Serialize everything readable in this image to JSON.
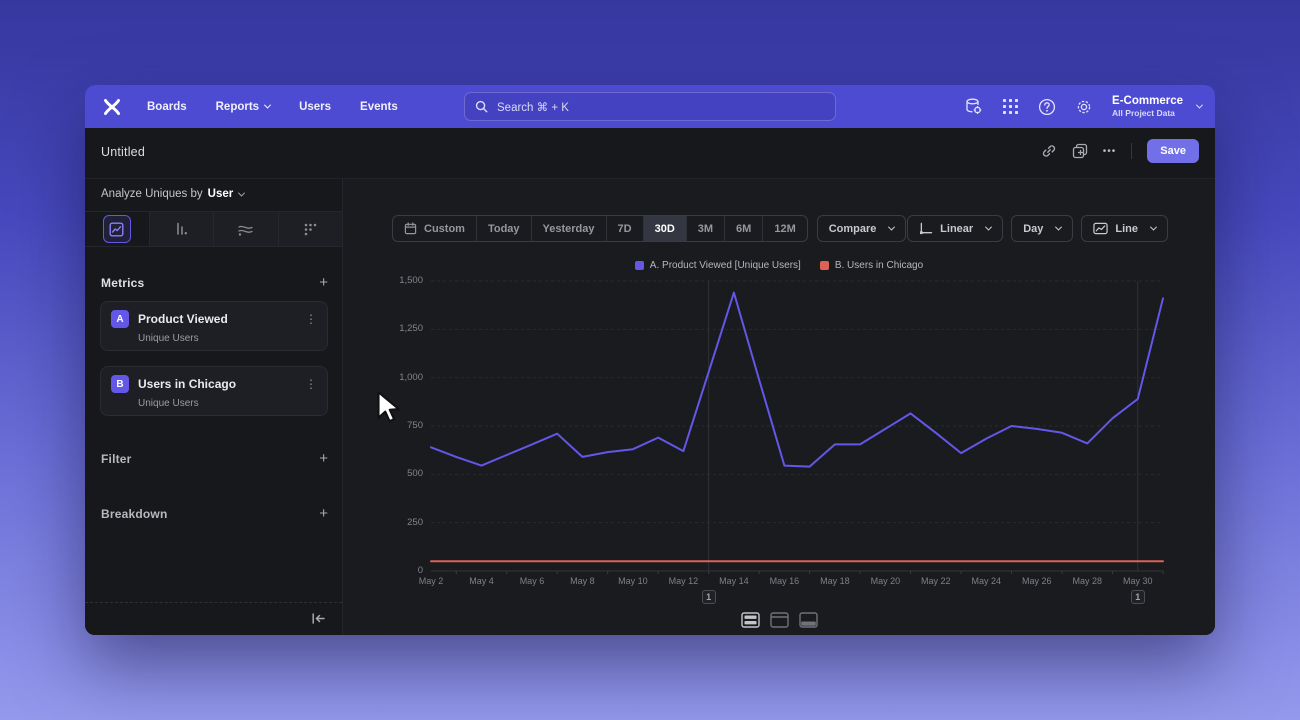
{
  "colors": {
    "accent_purple": "#6357e8",
    "series_red": "#dd6156",
    "nav_purple": "#4d4bd2",
    "save_button": "#7170e8",
    "window_bg": "#17181c"
  },
  "nav": {
    "items": [
      {
        "label": "Boards"
      },
      {
        "label": "Reports"
      },
      {
        "label": "Users"
      },
      {
        "label": "Events"
      }
    ],
    "search_placeholder": "Search  ⌘ + K",
    "project": {
      "name": "E-Commerce",
      "subtitle": "All Project Data"
    }
  },
  "titlebar": {
    "title": "Untitled",
    "save_label": "Save",
    "ellipsis": "•••"
  },
  "icons": {
    "kebab": "⋮",
    "plus": "+"
  },
  "sidebar": {
    "analyze_prefix": "Analyze Uniques by",
    "analyze_value": "User",
    "tabs": [
      "line-chart",
      "bar-chart",
      "flows",
      "grid"
    ],
    "selected_tab": "line-chart",
    "metrics_label": "Metrics",
    "metrics": [
      {
        "badge": "A",
        "name": "Product Viewed",
        "subtitle": "Unique Users"
      },
      {
        "badge": "B",
        "name": "Users in Chicago",
        "subtitle": "Unique Users"
      }
    ],
    "filter_label": "Filter",
    "breakdown_label": "Breakdown"
  },
  "controls": {
    "date_ranges": [
      "Custom",
      "Today",
      "Yesterday",
      "7D",
      "30D",
      "3M",
      "6M",
      "12M"
    ],
    "selected_range": "30D",
    "compare_label": "Compare",
    "scale_label": "Linear",
    "interval_label": "Day",
    "chart_type_label": "Line"
  },
  "legend": [
    {
      "label": "A. Product Viewed [Unique Users]",
      "color": "#6357e8"
    },
    {
      "label": "B. Users in Chicago",
      "color": "#dd6156"
    }
  ],
  "chart_data": {
    "type": "line",
    "title": "",
    "x": [
      "May 2",
      "May 3",
      "May 4",
      "May 5",
      "May 6",
      "May 7",
      "May 8",
      "May 9",
      "May 10",
      "May 11",
      "May 12",
      "May 13",
      "May 14",
      "May 15",
      "May 16",
      "May 17",
      "May 18",
      "May 19",
      "May 20",
      "May 21",
      "May 22",
      "May 23",
      "May 24",
      "May 25",
      "May 26",
      "May 27",
      "May 28",
      "May 29",
      "May 30",
      "May 31"
    ],
    "x_tick_labels": [
      "May 2",
      "May 4",
      "May 6",
      "May 8",
      "May 10",
      "May 12",
      "May 14",
      "May 16",
      "May 18",
      "May 20",
      "May 22",
      "May 24",
      "May 26",
      "May 28",
      "May 30"
    ],
    "series": [
      {
        "name": "A. Product Viewed [Unique Users]",
        "color": "#6357e8",
        "values": [
          640,
          590,
          545,
          600,
          655,
          710,
          590,
          615,
          630,
          690,
          620,
          1030,
          1440,
          990,
          545,
          540,
          655,
          655,
          735,
          815,
          715,
          610,
          685,
          750,
          735,
          715,
          660,
          790,
          890,
          1410
        ]
      },
      {
        "name": "B. Users in Chicago",
        "color": "#dd6156",
        "values": [
          50,
          50,
          50,
          50,
          50,
          50,
          50,
          50,
          50,
          50,
          50,
          50,
          50,
          50,
          50,
          50,
          50,
          50,
          50,
          50,
          50,
          50,
          50,
          50,
          50,
          50,
          50,
          50,
          50,
          50
        ]
      }
    ],
    "ylim": [
      0,
      1500
    ],
    "y_ticks": [
      0,
      250,
      500,
      750,
      1000,
      1250,
      1500
    ],
    "y_tick_labels": [
      "0",
      "250",
      "500",
      "750",
      "1,000",
      "1,250",
      "1,500"
    ],
    "grid": "horizontal-dashed",
    "legend_position": "top-center"
  },
  "annotations": [
    {
      "label": "1",
      "x": "May 13",
      "x_index": 11
    },
    {
      "label": "1",
      "x": "May 30",
      "x_index": 28
    }
  ],
  "footer": {
    "layout_options": [
      "split-rows",
      "panel-top",
      "panel-bottom"
    ],
    "selected_layout": "split-rows"
  }
}
